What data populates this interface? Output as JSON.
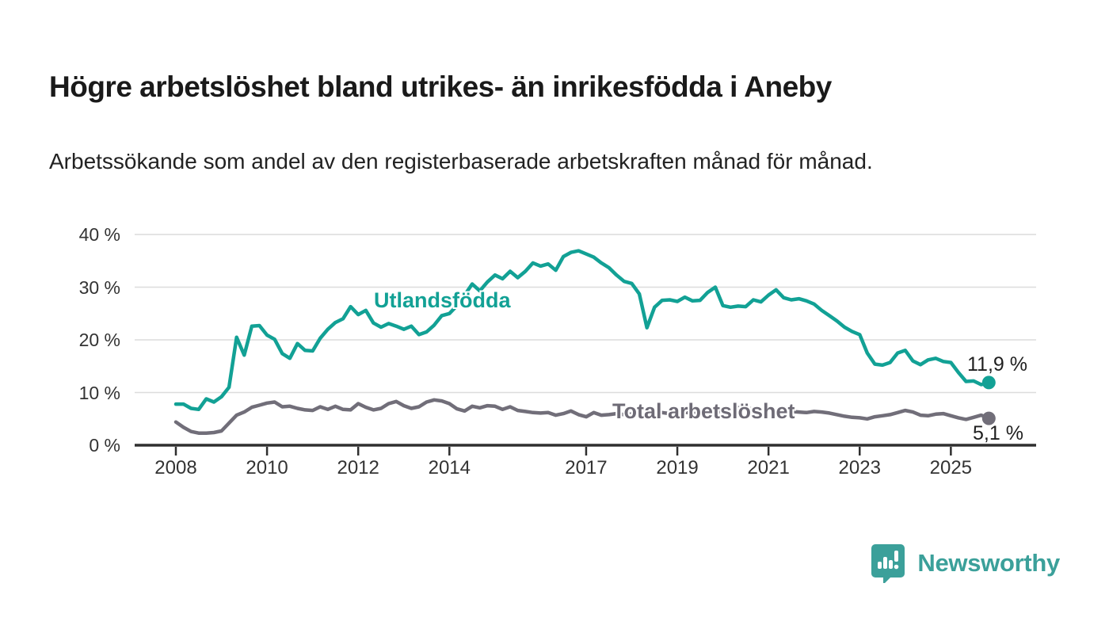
{
  "header": {
    "title": "Högre arbetslöshet bland utrikes- än inrikesfödda i Aneby",
    "subtitle": "Arbetssökande som andel av den registerbaserade arbetskraften månad för månad."
  },
  "footer": {
    "brand": "Newsworthy"
  },
  "colors": {
    "teal_line": "#12a195",
    "gray_line": "#716e79",
    "axis": "#2f2f2f",
    "grid": "#dcdcdc",
    "text": "#1a1a1a",
    "logo_teal": "#3ba09a"
  },
  "chart_data": {
    "type": "line",
    "title": "Högre arbetslöshet bland utrikes- än inrikesfödda i Aneby",
    "xlabel": "",
    "ylabel": "",
    "unit": "%",
    "grid": true,
    "legend_position": "inline-labels",
    "ylim": [
      0,
      40
    ],
    "y_axis": {
      "ticks": [
        {
          "value": 0,
          "label": "0 %"
        },
        {
          "value": 10,
          "label": "10 %"
        },
        {
          "value": 20,
          "label": "20 %"
        },
        {
          "value": 30,
          "label": "30 %"
        },
        {
          "value": 40,
          "label": "40 %"
        }
      ]
    },
    "x_axis": {
      "ticks": [
        {
          "value": 2008,
          "label": "2008"
        },
        {
          "value": 2010,
          "label": "2010"
        },
        {
          "value": 2012,
          "label": "2012"
        },
        {
          "value": 2014,
          "label": "2014"
        },
        {
          "value": 2017,
          "label": "2017"
        },
        {
          "value": 2019,
          "label": "2019"
        },
        {
          "value": 2021,
          "label": "2021"
        },
        {
          "value": 2023,
          "label": "2023"
        },
        {
          "value": 2025,
          "label": "2025"
        }
      ],
      "range": [
        2008.0,
        2025.833
      ]
    },
    "x_start": 2008.0,
    "x_step_years": 0.166667,
    "series": [
      {
        "name": "Utlandsfödda",
        "color": "#12a195",
        "end_label": "11,9 %",
        "end_value": 11.9,
        "values": [
          7.8,
          7.8,
          7.0,
          6.8,
          8.8,
          8.2,
          9.2,
          11.0,
          20.5,
          17.1,
          22.6,
          22.7,
          20.9,
          20.1,
          17.4,
          16.5,
          19.3,
          18.0,
          17.9,
          20.3,
          22.0,
          23.3,
          24.0,
          26.3,
          24.8,
          25.6,
          23.2,
          22.4,
          23.1,
          22.6,
          22.0,
          22.6,
          21.0,
          21.5,
          22.8,
          24.6,
          25.0,
          26.5,
          28.5,
          30.6,
          29.3,
          31.0,
          32.3,
          31.6,
          33.0,
          31.8,
          33.0,
          34.6,
          34.0,
          34.4,
          33.2,
          35.8,
          36.6,
          36.9,
          36.3,
          35.7,
          34.6,
          33.7,
          32.3,
          31.1,
          30.7,
          28.7,
          22.3,
          26.2,
          27.5,
          27.6,
          27.3,
          28.1,
          27.4,
          27.5,
          29.0,
          30.0,
          26.5,
          26.2,
          26.4,
          26.3,
          27.6,
          27.2,
          28.5,
          29.5,
          28.0,
          27.6,
          27.8,
          27.4,
          26.8,
          25.6,
          24.6,
          23.6,
          22.4,
          21.6,
          21.0,
          17.5,
          15.4,
          15.2,
          15.7,
          17.5,
          18.0,
          16.0,
          15.3,
          16.2,
          16.5,
          15.9,
          15.7,
          13.8,
          12.1,
          12.2,
          11.5,
          11.9
        ]
      },
      {
        "name": "Total arbetslöshet",
        "color": "#716e79",
        "end_label": "5,1 %",
        "end_value": 5.1,
        "values": [
          4.4,
          3.4,
          2.6,
          2.3,
          2.3,
          2.4,
          2.7,
          4.2,
          5.7,
          6.3,
          7.2,
          7.6,
          8.0,
          8.2,
          7.3,
          7.4,
          7.0,
          6.7,
          6.6,
          7.3,
          6.8,
          7.4,
          6.8,
          6.7,
          7.9,
          7.2,
          6.7,
          7.0,
          7.9,
          8.3,
          7.5,
          7.0,
          7.3,
          8.2,
          8.6,
          8.4,
          7.9,
          6.9,
          6.5,
          7.4,
          7.1,
          7.5,
          7.4,
          6.8,
          7.3,
          6.6,
          6.4,
          6.2,
          6.1,
          6.2,
          5.7,
          6.0,
          6.5,
          5.8,
          5.4,
          6.2,
          5.7,
          5.8,
          6.0,
          5.8,
          5.9,
          6.1,
          5.8,
          6.0,
          6.2,
          6.0,
          6.1,
          6.3,
          6.0,
          6.2,
          6.4,
          6.3,
          6.5,
          6.8,
          7.1,
          7.0,
          6.9,
          6.8,
          6.9,
          6.7,
          6.6,
          6.4,
          6.3,
          6.2,
          6.4,
          6.3,
          6.1,
          5.8,
          5.5,
          5.3,
          5.2,
          5.0,
          5.4,
          5.6,
          5.8,
          6.2,
          6.6,
          6.3,
          5.7,
          5.6,
          5.9,
          6.0,
          5.6,
          5.2,
          4.9,
          5.3,
          5.7,
          5.1
        ]
      }
    ]
  }
}
